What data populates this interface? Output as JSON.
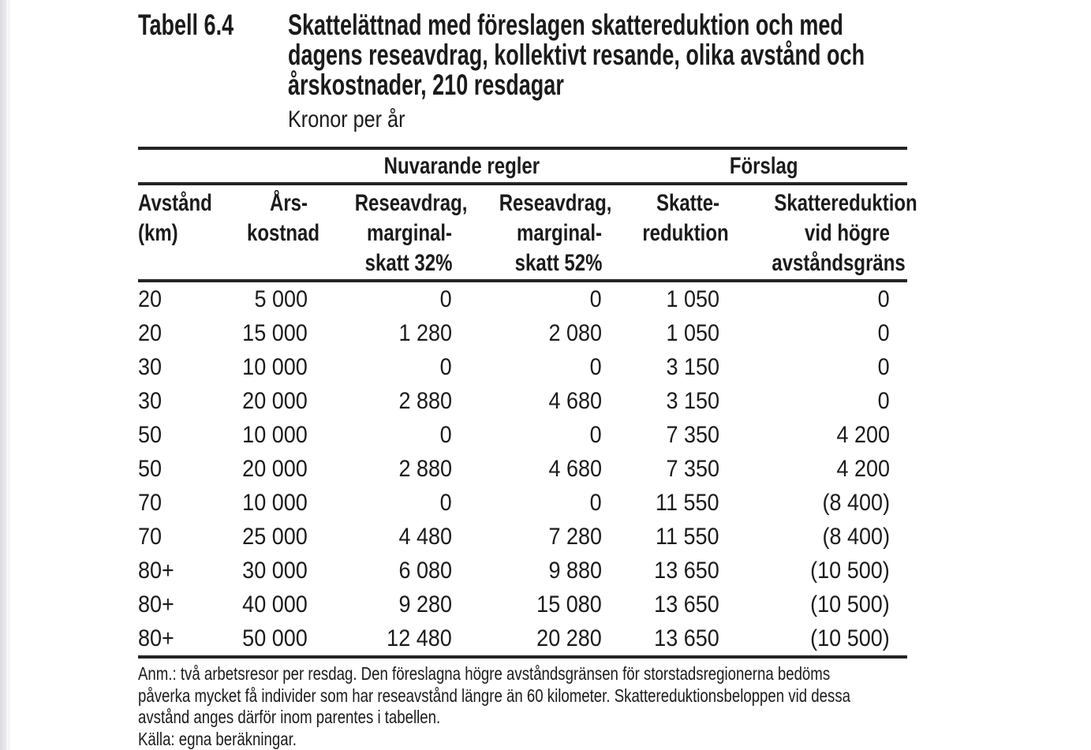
{
  "colors": {
    "page_background": "#ffffff",
    "text": "#1b1b1b",
    "table_rule": "#242424",
    "page_edge_strip": "#d9d9e0"
  },
  "caption": {
    "label": "Tabell 6.4",
    "lines": [
      "Skattelättnad med föreslagen skattereduktion och med",
      "dagens reseavdrag, kollektivt resande, olika avstånd och",
      "årskostnader, 210 resdagar"
    ],
    "unit": "Kronor per år"
  },
  "table": {
    "group_headers": [
      {
        "label": "Nuvarande regler",
        "spans_columns": [
          "reseavdrag-32",
          "reseavdrag-52"
        ]
      },
      {
        "label": "Förslag",
        "spans_columns": [
          "skattereduktion",
          "skattereduktion-hogre-gr"
        ]
      }
    ],
    "columns": [
      {
        "id": "avstand-km",
        "lines": [
          "Avstånd",
          "(km)"
        ],
        "align": "left"
      },
      {
        "id": "arskostnad",
        "lines": [
          "Års-",
          "kostnad"
        ],
        "align": "right"
      },
      {
        "id": "reseavdrag-32",
        "lines": [
          "Reseavdrag,",
          "marginal-",
          "skatt 32%"
        ],
        "align": "right"
      },
      {
        "id": "reseavdrag-52",
        "lines": [
          "Reseavdrag,",
          "marginal-",
          "skatt 52%"
        ],
        "align": "right"
      },
      {
        "id": "skattereduktion",
        "lines": [
          "Skatte-",
          "reduktion"
        ],
        "align": "right"
      },
      {
        "id": "skattereduktion-hogre-gr",
        "lines": [
          "Skattereduktion",
          "vid högre",
          "avståndsgräns"
        ],
        "align": "right"
      }
    ],
    "rows": [
      [
        "20",
        "5 000",
        "0",
        "0",
        "1 050",
        "0"
      ],
      [
        "20",
        "15 000",
        "1 280",
        "2 080",
        "1 050",
        "0"
      ],
      [
        "30",
        "10 000",
        "0",
        "0",
        "3 150",
        "0"
      ],
      [
        "30",
        "20 000",
        "2 880",
        "4 680",
        "3 150",
        "0"
      ],
      [
        "50",
        "10 000",
        "0",
        "0",
        "7 350",
        "4 200"
      ],
      [
        "50",
        "20 000",
        "2 880",
        "4 680",
        "7 350",
        "4 200"
      ],
      [
        "70",
        "10 000",
        "0",
        "0",
        "11 550",
        "(8 400)"
      ],
      [
        "70",
        "25 000",
        "4 480",
        "7 280",
        "11 550",
        "(8 400)"
      ],
      [
        "80+",
        "30 000",
        "6 080",
        "9 880",
        "13 650",
        "(10 500)"
      ],
      [
        "80+",
        "40 000",
        "9 280",
        "15 080",
        "13 650",
        "(10 500)"
      ],
      [
        "80+",
        "50 000",
        "12 480",
        "20 280",
        "13 650",
        "(10 500)"
      ]
    ]
  },
  "notes": {
    "anm_lines": [
      "Anm.: två arbetsresor per resdag. Den föreslagna högre avståndsgränsen för storstadsregionerna bedöms",
      "påverka mycket få individer som har reseavstånd längre än 60 kilometer. Skattereduktionsbeloppen vid dessa",
      "avstånd anges därför inom parentes i tabellen."
    ],
    "source": "Källa: egna beräkningar."
  }
}
